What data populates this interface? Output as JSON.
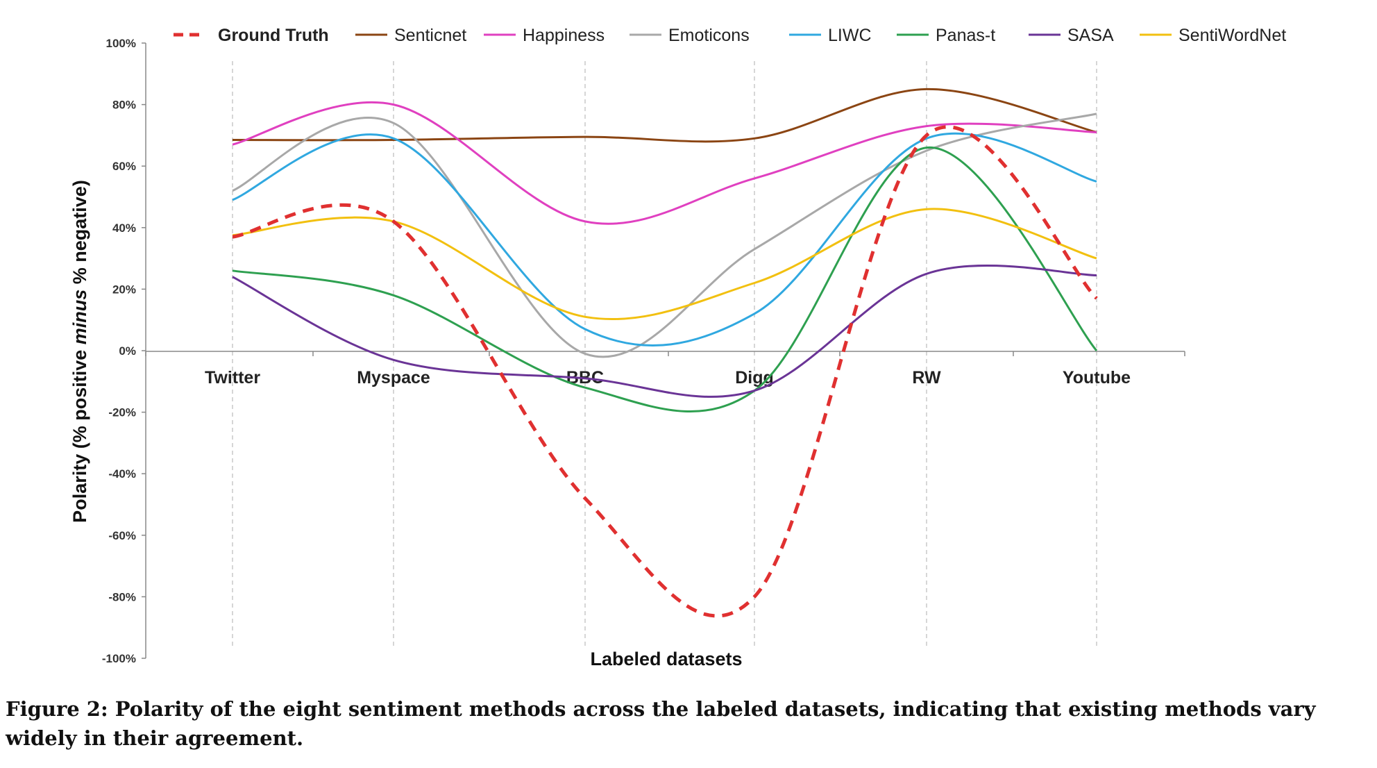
{
  "chart_data": {
    "type": "line",
    "xlabel": "Labeled datasets",
    "ylabel_parts": [
      "Polarity (% positive ",
      "minus",
      " % negative)"
    ],
    "ylim": [
      -100,
      100
    ],
    "ytick_values": [
      100,
      80,
      60,
      40,
      20,
      0,
      -20,
      -40,
      -60,
      -80,
      -100
    ],
    "ytick_labels": [
      "100%",
      "80%",
      "60%",
      "40%",
      "20%",
      "0%",
      "-20%",
      "-40%",
      "-60%",
      "-80%",
      "-100%"
    ],
    "categories": [
      "Twitter",
      "Myspace",
      "BBC",
      "Digg",
      "RW",
      "Youtube"
    ],
    "grid": "vertical dashed lines at categories",
    "legend_position": "top",
    "series": [
      {
        "name": "Ground Truth",
        "color": "#e03030",
        "dashed": true,
        "values": [
          37,
          42,
          -48,
          -80,
          70,
          17
        ]
      },
      {
        "name": "Senticnet",
        "color": "#8b4513",
        "dashed": false,
        "values": [
          68.5,
          68.5,
          69.5,
          69,
          85,
          71
        ]
      },
      {
        "name": "Happiness",
        "color": "#e040c0",
        "dashed": false,
        "values": [
          67,
          80,
          42,
          56,
          73,
          71
        ]
      },
      {
        "name": "Emoticons",
        "color": "#a8a8a8",
        "dashed": false,
        "values": [
          52,
          74,
          -1,
          33,
          65,
          77
        ]
      },
      {
        "name": "LIWC",
        "color": "#30a8e0",
        "dashed": false,
        "values": [
          49,
          69,
          7,
          12,
          69,
          55
        ]
      },
      {
        "name": "Panas-t",
        "color": "#2ea050",
        "dashed": false,
        "values": [
          26,
          18,
          -12,
          -13,
          66,
          0
        ]
      },
      {
        "name": "SASA",
        "color": "#6a3496",
        "dashed": false,
        "values": [
          24,
          -3,
          -9,
          -13,
          25,
          24.5
        ]
      },
      {
        "name": "SentiWordNet",
        "color": "#f2c010",
        "dashed": false,
        "values": [
          37.5,
          42,
          11,
          22,
          46,
          30
        ]
      }
    ]
  },
  "caption": "Figure 2: Polarity of the eight sentiment methods across the labeled datasets, indicating that existing methods vary widely in their agreement."
}
